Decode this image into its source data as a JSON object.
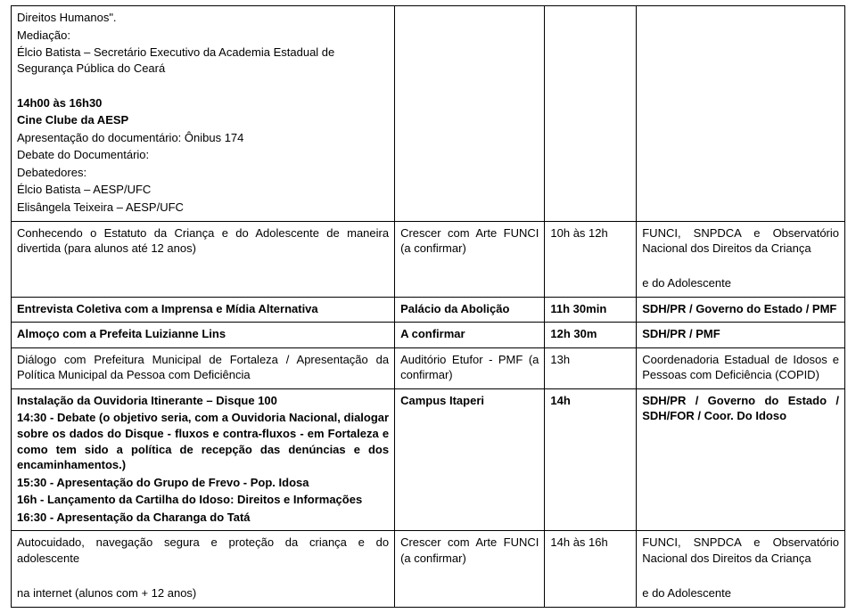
{
  "rows": [
    {
      "c1": [
        {
          "text": "Direitos Humanos\".",
          "bold": false
        },
        {
          "text": "Mediação:",
          "bold": false
        },
        {
          "text": "Élcio Batista – Secretário Executivo da Academia Estadual de Segurança Pública do Ceará",
          "bold": false
        },
        {
          "text": "",
          "bold": false
        },
        {
          "text": "14h00 às 16h30",
          "bold": true
        },
        {
          "text": "Cine Clube da AESP",
          "bold": true
        },
        {
          "text": "Apresentação do documentário: Ônibus 174",
          "bold": false
        },
        {
          "text": "Debate do Documentário:",
          "bold": false
        },
        {
          "text": "Debatedores:",
          "bold": false
        },
        {
          "text": "Élcio Batista – AESP/UFC",
          "bold": false
        },
        {
          "text": "Elisângela Teixeira – AESP/UFC",
          "bold": false
        }
      ],
      "c2": "",
      "c3": "",
      "c4": ""
    },
    {
      "c1": [
        {
          "text": "Conhecendo o Estatuto da Criança e do Adolescente de maneira divertida (para alunos até 12 anos)",
          "bold": false,
          "justify": true
        }
      ],
      "c2": "Crescer com Arte FUNCI (a confirmar)",
      "c2justify": true,
      "c3": "10h às 12h",
      "c4": [
        {
          "text": "FUNCI, SNPDCA e Observatório Nacional dos Direitos da Criança",
          "bold": false,
          "justify": true
        },
        {
          "text": "",
          "bold": false
        },
        {
          "text": "e do Adolescente",
          "bold": false
        }
      ]
    },
    {
      "c1": [
        {
          "text": "Entrevista Coletiva com a Imprensa e Mídia Alternativa",
          "bold": true
        }
      ],
      "c2": "Palácio da Abolição",
      "c2bold": true,
      "c3": "11h 30min",
      "c3bold": true,
      "c4": [
        {
          "text": "SDH/PR / Governo do Estado / PMF",
          "bold": true,
          "justify": true
        }
      ]
    },
    {
      "c1": [
        {
          "text": "Almoço com a Prefeita Luizianne Lins",
          "bold": true
        }
      ],
      "c2": "A confirmar",
      "c2bold": true,
      "c3": "12h 30m",
      "c3bold": true,
      "c4": [
        {
          "text": "SDH/PR / PMF",
          "bold": true
        }
      ]
    },
    {
      "c1": [
        {
          "text": "Diálogo com Prefeitura Municipal de Fortaleza / Apresentação da Política Municipal da Pessoa com Deficiência",
          "bold": false,
          "justify": true
        }
      ],
      "c2": "Auditório Etufor - PMF (a confirmar)",
      "c2justify": true,
      "c3": "13h",
      "c4": [
        {
          "text": "Coordenadoria Estadual de Idosos e Pessoas com Deficiência (COPID)",
          "bold": false,
          "justify": true
        }
      ]
    },
    {
      "c1": [
        {
          "text": "Instalação da Ouvidoria Itinerante – Disque 100",
          "bold": true
        },
        {
          "text": "14:30 - Debate (o objetivo seria, com a Ouvidoria Nacional, dialogar sobre os dados do Disque - fluxos e contra-fluxos - em Fortaleza e como tem sido a política de recepção das denúncias e dos encaminhamentos.)",
          "bold": true,
          "justify": true
        },
        {
          "text": "15:30 - Apresentação do Grupo de Frevo - Pop. Idosa",
          "bold": true
        },
        {
          "text": "16h - Lançamento da Cartilha do Idoso: Direitos e Informações",
          "bold": true
        },
        {
          "text": "16:30 - Apresentação da Charanga do Tatá",
          "bold": true
        }
      ],
      "c2": "Campus Itaperi",
      "c2bold": true,
      "c3": "14h",
      "c3bold": true,
      "c4": [
        {
          "text": "SDH/PR / Governo do Estado / SDH/FOR / Coor. Do Idoso",
          "bold": true,
          "justify": true
        }
      ]
    },
    {
      "c1": [
        {
          "text": "Autocuidado, navegação segura e proteção da criança e do adolescente",
          "bold": false,
          "justify": true
        },
        {
          "text": "",
          "bold": false
        },
        {
          "text": "na internet (alunos com + 12 anos)",
          "bold": false
        }
      ],
      "c2": "Crescer com Arte FUNCI (a confirmar)",
      "c2justify": true,
      "c3": "14h às 16h",
      "c4": [
        {
          "text": "FUNCI, SNPDCA e Observatório Nacional dos Direitos da Criança",
          "bold": false,
          "justify": true
        },
        {
          "text": "",
          "bold": false
        },
        {
          "text": "e do Adolescente",
          "bold": false
        }
      ]
    }
  ]
}
